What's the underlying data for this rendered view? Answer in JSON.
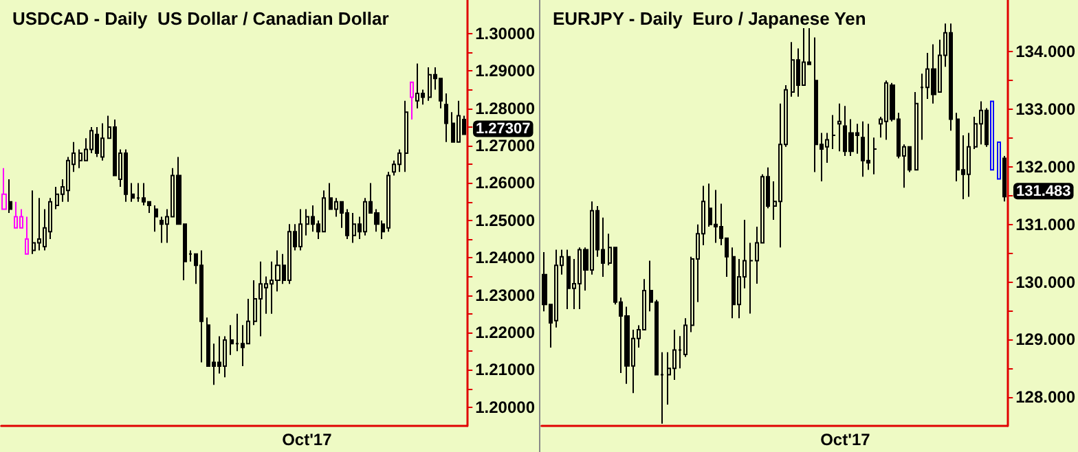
{
  "chart_data": [
    {
      "type": "candlestick",
      "title": "USDCAD - Daily  US Dollar / Canadian Dollar",
      "color": "#000000",
      "categories": [
        null,
        null,
        null,
        null,
        null,
        null,
        null,
        null,
        null,
        null,
        null,
        null,
        null,
        null,
        null,
        null,
        null,
        null,
        null,
        null,
        null,
        null,
        null,
        null,
        null,
        null,
        null,
        null,
        null,
        null,
        null,
        null,
        null,
        null,
        null,
        null,
        null,
        null,
        null,
        null,
        null,
        null,
        null,
        null,
        null,
        null,
        null,
        null,
        null,
        null,
        null,
        null,
        "Oct'17",
        null,
        null,
        null,
        null,
        null,
        null,
        null,
        null,
        null,
        null,
        null,
        null,
        null,
        null,
        null,
        null,
        null,
        null,
        null,
        null,
        null,
        null,
        null,
        null,
        null,
        null,
        null
      ],
      "ohlc": [
        [
          1.257,
          1.264,
          1.253,
          1.253
        ],
        [
          1.255,
          1.261,
          1.252,
          1.253
        ],
        [
          1.251,
          1.255,
          1.248,
          1.248
        ],
        [
          1.251,
          1.253,
          1.248,
          1.248
        ],
        [
          1.245,
          1.251,
          1.241,
          1.241
        ],
        [
          1.242,
          1.258,
          1.241,
          1.244
        ],
        [
          1.244,
          1.256,
          1.242,
          1.245
        ],
        [
          1.243,
          1.253,
          1.242,
          1.248
        ],
        [
          1.247,
          1.256,
          1.245,
          1.255
        ],
        [
          1.254,
          1.259,
          1.253,
          1.257
        ],
        [
          1.257,
          1.261,
          1.255,
          1.259
        ],
        [
          1.258,
          1.267,
          1.255,
          1.266
        ],
        [
          1.265,
          1.271,
          1.263,
          1.268
        ],
        [
          1.266,
          1.269,
          1.264,
          1.268
        ],
        [
          1.266,
          1.272,
          1.266,
          1.269
        ],
        [
          1.269,
          1.275,
          1.268,
          1.274
        ],
        [
          1.273,
          1.275,
          1.267,
          1.268
        ],
        [
          1.267,
          1.276,
          1.266,
          1.272
        ],
        [
          1.272,
          1.278,
          1.272,
          1.275
        ],
        [
          1.275,
          1.277,
          1.262,
          1.262
        ],
        [
          1.261,
          1.269,
          1.259,
          1.268
        ],
        [
          1.268,
          1.269,
          1.255,
          1.257
        ],
        [
          1.257,
          1.26,
          1.255,
          1.256
        ],
        [
          1.256,
          1.26,
          1.255,
          1.256
        ],
        [
          1.256,
          1.26,
          1.254,
          1.255
        ],
        [
          1.255,
          1.255,
          1.252,
          1.254
        ],
        [
          1.253,
          1.254,
          1.247,
          1.251
        ],
        [
          1.25,
          1.251,
          1.244,
          1.249
        ],
        [
          1.249,
          1.253,
          1.244,
          1.251
        ],
        [
          1.251,
          1.264,
          1.251,
          1.262
        ],
        [
          1.262,
          1.267,
          1.249,
          1.249
        ],
        [
          1.249,
          1.249,
          1.234,
          1.239
        ],
        [
          1.241,
          1.242,
          1.239,
          1.241
        ],
        [
          1.241,
          1.241,
          1.233,
          1.238
        ],
        [
          1.238,
          1.242,
          1.212,
          1.223
        ],
        [
          1.222,
          1.224,
          1.211,
          1.211
        ],
        [
          1.212,
          1.217,
          1.206,
          1.211
        ],
        [
          1.212,
          1.219,
          1.209,
          1.211
        ],
        [
          1.211,
          1.219,
          1.208,
          1.218
        ],
        [
          1.218,
          1.222,
          1.214,
          1.217
        ],
        [
          1.217,
          1.225,
          1.215,
          1.217
        ],
        [
          1.217,
          1.222,
          1.211,
          1.216
        ],
        [
          1.217,
          1.229,
          1.217,
          1.223
        ],
        [
          1.223,
          1.234,
          1.222,
          1.229
        ],
        [
          1.229,
          1.239,
          1.219,
          1.233
        ],
        [
          1.232,
          1.235,
          1.225,
          1.233
        ],
        [
          1.233,
          1.239,
          1.225,
          1.234
        ],
        [
          1.234,
          1.242,
          1.231,
          1.238
        ],
        [
          1.238,
          1.241,
          1.233,
          1.234
        ],
        [
          1.234,
          1.249,
          1.233,
          1.247
        ],
        [
          1.247,
          1.249,
          1.242,
          1.243
        ],
        [
          1.243,
          1.253,
          1.242,
          1.249
        ],
        [
          1.249,
          1.253,
          1.246,
          1.251
        ],
        [
          1.251,
          1.254,
          1.247,
          1.249
        ],
        [
          1.249,
          1.25,
          1.245,
          1.247
        ],
        [
          1.247,
          1.258,
          1.247,
          1.256
        ],
        [
          1.256,
          1.26,
          1.253,
          1.253
        ],
        [
          1.253,
          1.256,
          1.251,
          1.255
        ],
        [
          1.255,
          1.255,
          1.248,
          1.252
        ],
        [
          1.252,
          1.253,
          1.245,
          1.246
        ],
        [
          1.246,
          1.252,
          1.244,
          1.249
        ],
        [
          1.249,
          1.251,
          1.245,
          1.247
        ],
        [
          1.247,
          1.256,
          1.246,
          1.255
        ],
        [
          1.255,
          1.26,
          1.252,
          1.252
        ],
        [
          1.252,
          1.253,
          1.247,
          1.249
        ],
        [
          1.249,
          1.25,
          1.245,
          1.247
        ],
        [
          1.248,
          1.263,
          1.247,
          1.262
        ],
        [
          1.263,
          1.266,
          1.262,
          1.265
        ],
        [
          1.265,
          1.269,
          1.263,
          1.268
        ],
        [
          1.268,
          1.282,
          1.263,
          1.279
        ],
        [
          1.283,
          1.287,
          1.277,
          1.287
        ],
        [
          1.282,
          1.292,
          1.28,
          1.284
        ],
        [
          1.284,
          1.285,
          1.281,
          1.283
        ],
        [
          1.283,
          1.291,
          1.282,
          1.289
        ],
        [
          1.289,
          1.291,
          1.285,
          1.288
        ],
        [
          1.288,
          1.288,
          1.28,
          1.282
        ],
        [
          1.281,
          1.284,
          1.271,
          1.276
        ],
        [
          1.276,
          1.279,
          1.271,
          1.271
        ],
        [
          1.271,
          1.282,
          1.271,
          1.278
        ],
        [
          1.277,
          1.278,
          1.273,
          1.27307
        ]
      ],
      "colors": [
        "#ff00ff",
        null,
        "#ff00ff",
        "#ff00ff",
        "#ff00ff",
        null,
        null,
        null,
        null,
        null,
        null,
        null,
        null,
        null,
        null,
        null,
        null,
        null,
        null,
        null,
        null,
        null,
        null,
        null,
        null,
        null,
        null,
        null,
        null,
        null,
        null,
        null,
        null,
        null,
        null,
        null,
        null,
        null,
        null,
        null,
        null,
        null,
        null,
        null,
        null,
        null,
        null,
        null,
        null,
        null,
        null,
        null,
        null,
        null,
        null,
        null,
        null,
        null,
        null,
        null,
        null,
        null,
        null,
        null,
        null,
        null,
        null,
        null,
        null,
        null,
        "#ff00ff",
        null,
        null,
        null,
        null,
        null,
        null,
        null,
        null,
        null
      ],
      "ylim": [
        1.195,
        1.309
      ],
      "yticks": [
        {
          "value": 1.2,
          "label": "1.20000"
        },
        {
          "value": 1.205,
          "label": null
        },
        {
          "value": 1.21,
          "label": "1.21000"
        },
        {
          "value": 1.215,
          "label": null
        },
        {
          "value": 1.22,
          "label": "1.22000"
        },
        {
          "value": 1.225,
          "label": null
        },
        {
          "value": 1.23,
          "label": "1.23000"
        },
        {
          "value": 1.235,
          "label": null
        },
        {
          "value": 1.24,
          "label": "1.24000"
        },
        {
          "value": 1.245,
          "label": null
        },
        {
          "value": 1.25,
          "label": "1.25000"
        },
        {
          "value": 1.255,
          "label": null
        },
        {
          "value": 1.26,
          "label": "1.26000"
        },
        {
          "value": 1.265,
          "label": null
        },
        {
          "value": 1.27,
          "label": "1.27000"
        },
        {
          "value": 1.275,
          "label": null
        },
        {
          "value": 1.28,
          "label": "1.28000"
        },
        {
          "value": 1.285,
          "label": null
        },
        {
          "value": 1.29,
          "label": "1.29000"
        },
        {
          "value": 1.295,
          "label": null
        },
        {
          "value": 1.3,
          "label": "1.30000"
        }
      ],
      "annotations": [
        "1.27307"
      ]
    },
    {
      "type": "candlestick",
      "title": "EURJPY - Daily  Euro / Japanese Yen",
      "color": "#000000",
      "categories": [
        null,
        null,
        null,
        null,
        null,
        null,
        null,
        null,
        null,
        null,
        null,
        null,
        null,
        null,
        null,
        null,
        null,
        null,
        null,
        null,
        null,
        null,
        null,
        null,
        null,
        null,
        null,
        null,
        null,
        null,
        null,
        null,
        null,
        null,
        null,
        null,
        null,
        null,
        null,
        null,
        null,
        null,
        null,
        null,
        null,
        null,
        null,
        null,
        null,
        null,
        null,
        "Oct'17",
        null,
        null,
        null,
        null,
        null,
        null,
        null,
        null,
        null,
        null,
        null,
        null,
        null,
        null,
        null,
        null,
        null,
        null,
        null,
        null,
        null,
        null,
        null,
        null,
        null,
        null,
        null
      ],
      "ohlc": [
        [
          130.13,
          130.52,
          129.49,
          129.61
        ],
        [
          129.61,
          129.61,
          128.86,
          129.29
        ],
        [
          129.33,
          130.56,
          129.21,
          130.29
        ],
        [
          130.29,
          130.56,
          130.13,
          130.44
        ],
        [
          130.44,
          130.56,
          129.53,
          129.89
        ],
        [
          129.89,
          130.4,
          129.53,
          129.97
        ],
        [
          129.97,
          130.6,
          129.53,
          130.56
        ],
        [
          130.56,
          130.6,
          129.85,
          130.21
        ],
        [
          130.21,
          131.4,
          130.13,
          131.24
        ],
        [
          131.24,
          131.32,
          130.44,
          130.56
        ],
        [
          130.56,
          131.12,
          130.09,
          130.33
        ],
        [
          130.33,
          130.84,
          130.29,
          130.6
        ],
        [
          130.6,
          130.6,
          129.61,
          129.65
        ],
        [
          129.65,
          129.73,
          128.42,
          129.41
        ],
        [
          129.41,
          129.57,
          128.23,
          128.54
        ],
        [
          128.54,
          129.17,
          128.07,
          129.02
        ],
        [
          129.02,
          129.25,
          128.86,
          129.17
        ],
        [
          129.17,
          130.05,
          129.17,
          129.85
        ],
        [
          129.85,
          130.37,
          129.49,
          129.65
        ],
        [
          129.65,
          129.69,
          128.39,
          128.39
        ],
        [
          128.39,
          128.78,
          127.54,
          128.39
        ],
        [
          128.39,
          128.78,
          127.87,
          128.5
        ],
        [
          128.5,
          129.17,
          128.3,
          128.82
        ],
        [
          128.82,
          129.06,
          128.5,
          128.82
        ],
        [
          128.74,
          129.37,
          128.7,
          129.25
        ],
        [
          129.25,
          130.44,
          129.13,
          130.4
        ],
        [
          130.4,
          131.0,
          129.65,
          130.84
        ],
        [
          130.84,
          131.67,
          130.64,
          131.4
        ],
        [
          131.28,
          131.71,
          130.96,
          131.0
        ],
        [
          131.0,
          131.6,
          130.68,
          130.96
        ],
        [
          130.96,
          131.36,
          130.64,
          130.76
        ],
        [
          130.76,
          130.76,
          130.09,
          130.44
        ],
        [
          130.44,
          130.6,
          129.37,
          129.61
        ],
        [
          129.61,
          130.4,
          129.37,
          130.09
        ],
        [
          130.09,
          131.08,
          129.89,
          130.37
        ],
        [
          130.37,
          130.68,
          129.45,
          130.37
        ],
        [
          130.37,
          130.96,
          129.97,
          130.68
        ],
        [
          130.68,
          131.87,
          130.68,
          131.83
        ],
        [
          131.83,
          131.99,
          131.28,
          131.32
        ],
        [
          131.32,
          131.75,
          131.08,
          131.4
        ],
        [
          131.4,
          133.1,
          130.6,
          132.39
        ],
        [
          132.39,
          133.42,
          132.35,
          133.34
        ],
        [
          133.3,
          134.17,
          133.22,
          133.86
        ],
        [
          133.86,
          134.06,
          133.22,
          133.42
        ],
        [
          133.42,
          134.41,
          133.42,
          133.82
        ],
        [
          133.82,
          134.41,
          133.78,
          133.78
        ],
        [
          133.5,
          134.25,
          131.91,
          132.39
        ],
        [
          132.39,
          132.59,
          131.75,
          132.31
        ],
        [
          132.35,
          132.59,
          132.07,
          132.47
        ],
        [
          132.55,
          132.9,
          132.31,
          132.55
        ],
        [
          132.75,
          133.1,
          132.27,
          132.79
        ],
        [
          132.71,
          133.06,
          132.19,
          132.27
        ],
        [
          132.59,
          132.83,
          132.19,
          132.27
        ],
        [
          132.59,
          132.75,
          132.23,
          132.55
        ],
        [
          132.51,
          132.79,
          131.83,
          132.11
        ],
        [
          132.11,
          132.75,
          131.95,
          132.07
        ],
        [
          132.31,
          132.51,
          131.87,
          132.31
        ],
        [
          132.75,
          132.87,
          132.51,
          132.83
        ],
        [
          132.79,
          133.5,
          132.47,
          133.46
        ],
        [
          133.42,
          133.46,
          132.79,
          132.83
        ],
        [
          132.83,
          132.94,
          132.15,
          132.19
        ],
        [
          132.19,
          132.39,
          131.64,
          132.35
        ],
        [
          132.35,
          132.35,
          131.91,
          131.95
        ],
        [
          131.95,
          133.3,
          131.95,
          133.1
        ],
        [
          133.38,
          133.62,
          132.47,
          133.38
        ],
        [
          133.38,
          133.98,
          133.18,
          133.7
        ],
        [
          133.7,
          134.13,
          133.1,
          133.26
        ],
        [
          133.3,
          134.21,
          133.3,
          133.94
        ],
        [
          133.94,
          134.49,
          133.74,
          134.33
        ],
        [
          134.33,
          134.49,
          132.63,
          132.83
        ],
        [
          132.83,
          132.94,
          131.75,
          131.95
        ],
        [
          131.95,
          132.55,
          131.44,
          131.87
        ],
        [
          131.87,
          132.59,
          131.48,
          132.35
        ],
        [
          132.35,
          132.87,
          132.31,
          132.75
        ],
        [
          132.75,
          133.14,
          132.39,
          132.98
        ],
        [
          132.98,
          133.02,
          132.35,
          132.39
        ],
        [
          133.14,
          133.14,
          131.95,
          131.95
        ],
        [
          132.43,
          132.43,
          131.79,
          131.79
        ],
        [
          132.15,
          132.19,
          131.4,
          131.483
        ]
      ],
      "colors": [
        null,
        null,
        null,
        null,
        null,
        null,
        null,
        null,
        null,
        null,
        null,
        null,
        null,
        null,
        null,
        null,
        null,
        null,
        null,
        null,
        null,
        null,
        null,
        null,
        null,
        null,
        null,
        null,
        null,
        null,
        null,
        null,
        null,
        null,
        null,
        null,
        null,
        null,
        null,
        null,
        null,
        null,
        null,
        null,
        null,
        null,
        null,
        null,
        null,
        null,
        null,
        null,
        null,
        null,
        null,
        null,
        null,
        null,
        null,
        null,
        null,
        null,
        null,
        null,
        null,
        null,
        null,
        null,
        null,
        null,
        null,
        null,
        null,
        null,
        null,
        null,
        "#0000ff",
        "#0000ff",
        null
      ],
      "ylim": [
        127.5,
        134.9
      ],
      "yticks": [
        {
          "value": 128,
          "label": "128.000"
        },
        {
          "value": 128.5,
          "label": null
        },
        {
          "value": 129,
          "label": "129.000"
        },
        {
          "value": 129.5,
          "label": null
        },
        {
          "value": 130,
          "label": "130.000"
        },
        {
          "value": 130.5,
          "label": null
        },
        {
          "value": 131,
          "label": "131.000"
        },
        {
          "value": 131.5,
          "label": null
        },
        {
          "value": 132,
          "label": "132.000"
        },
        {
          "value": 132.5,
          "label": null
        },
        {
          "value": 133,
          "label": "133.000"
        },
        {
          "value": 133.5,
          "label": null
        },
        {
          "value": 134,
          "label": "134.000"
        }
      ],
      "annotations": [
        "131.483"
      ]
    }
  ]
}
